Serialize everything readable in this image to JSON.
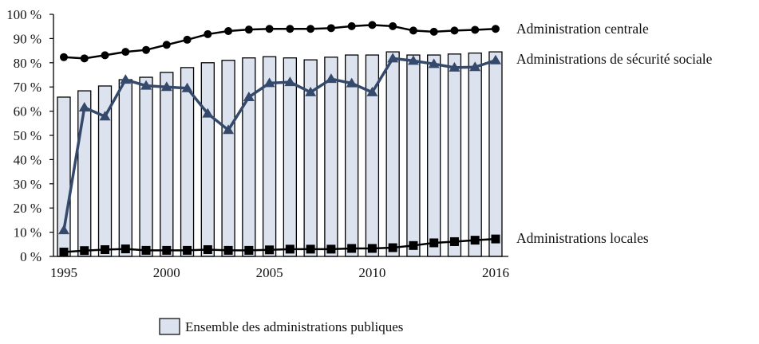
{
  "chart_data": {
    "type": "bar",
    "title": "",
    "xlabel": "",
    "ylabel": "",
    "ylim": [
      0,
      100
    ],
    "y_ticks": [
      0,
      10,
      20,
      30,
      40,
      50,
      60,
      70,
      80,
      90,
      100
    ],
    "y_tick_suffix": " %",
    "x_tick_labels": [
      "1995",
      "2000",
      "2005",
      "2010",
      "2016"
    ],
    "grid": false,
    "categories": [
      "1995",
      "1996",
      "1997",
      "1998",
      "1999",
      "2000",
      "2001",
      "2002",
      "2003",
      "2004",
      "2005",
      "2006",
      "2007",
      "2008",
      "2009",
      "2010",
      "2011",
      "2012",
      "2013",
      "2014",
      "2015",
      "2016"
    ],
    "series": [
      {
        "name": "Ensemble des administrations publiques",
        "kind": "bar",
        "color": "#dce3ee",
        "values": [
          65.8,
          68.4,
          70.4,
          73.0,
          74.0,
          76.0,
          78.0,
          80.0,
          81.0,
          82.0,
          82.5,
          82.0,
          81.2,
          82.3,
          83.2,
          83.2,
          84.5,
          83.2,
          83.2,
          83.6,
          84.0,
          84.5
        ]
      },
      {
        "name": "Administration centrale",
        "kind": "line",
        "marker": "circle",
        "color": "#000000",
        "values": [
          82.3,
          81.8,
          83.1,
          84.5,
          85.3,
          87.4,
          89.5,
          91.8,
          93.1,
          93.7,
          94.0,
          94.0,
          94.0,
          94.3,
          95.1,
          95.6,
          95.1,
          93.3,
          92.8,
          93.3,
          93.6,
          94.0
        ]
      },
      {
        "name": "Administrations de sécurité sociale",
        "kind": "line",
        "marker": "triangle",
        "color": "#34496b",
        "values": [
          10.8,
          61.5,
          57.8,
          73.0,
          70.5,
          70.0,
          69.5,
          59.0,
          52.2,
          65.8,
          71.6,
          72.0,
          67.8,
          73.3,
          71.5,
          67.8,
          81.8,
          80.8,
          79.5,
          78.0,
          78.2,
          81.0
        ]
      },
      {
        "name": "Administrations locales",
        "kind": "line",
        "marker": "square",
        "color": "#000000",
        "values": [
          1.8,
          2.4,
          2.8,
          3.1,
          2.5,
          2.5,
          2.5,
          2.8,
          2.5,
          2.5,
          2.7,
          3.0,
          3.0,
          3.0,
          3.3,
          3.3,
          3.6,
          4.5,
          5.6,
          6.1,
          6.7,
          7.2
        ]
      }
    ],
    "series_labels": [
      {
        "text": "Administration centrale",
        "anchor_value": 94.0
      },
      {
        "text": "Administrations de sécurité sociale",
        "anchor_value": 81.5
      },
      {
        "text": "Administrations locales",
        "anchor_value": 7.5
      }
    ],
    "legend": {
      "placement": "bottom-center",
      "entries": [
        "Ensemble des administrations publiques"
      ]
    }
  }
}
